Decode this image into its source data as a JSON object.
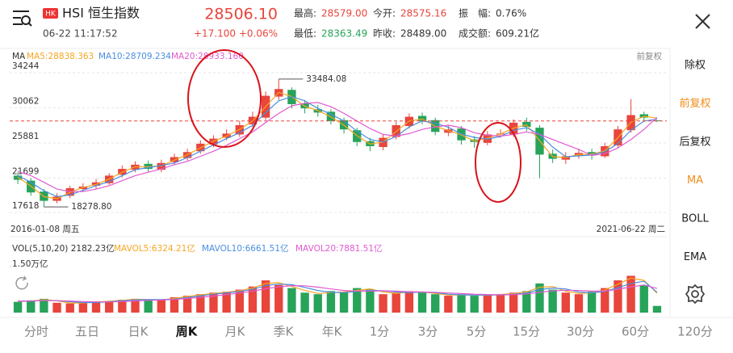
{
  "header": {
    "badge": "HK",
    "name": "HSI 恒生指数",
    "time": "06-22 11:17:52",
    "price": "28506.10",
    "change": "+17.100",
    "change_pct": "+0.06%",
    "stats": [
      {
        "label": "最高:",
        "value": "28579.00"
      },
      {
        "label": "今开:",
        "value": "28575.16"
      },
      {
        "label": "振　幅:",
        "value": "0.76%"
      },
      {
        "label": "最低:",
        "value": "28363.49"
      },
      {
        "label": "昨收:",
        "value": "28489.00"
      },
      {
        "label": "成交额:",
        "value": "609.21亿"
      }
    ]
  },
  "chart_data": {
    "type": "candlestick",
    "ma_label": "MA",
    "adjust_label": "前复权",
    "start_label": "2016-01-08 周五",
    "end_label": "2021-06-22 周二",
    "up_color": "#e8453c",
    "down_color": "#27a35a",
    "grid": true,
    "ylim": [
      17618,
      34244
    ],
    "yticks": [
      34244,
      30062,
      25881,
      21699,
      17618
    ],
    "max_mark": 33484.08,
    "min_mark": {
      "value": 18278.8,
      "label": "18278.80"
    },
    "open": [
      22000,
      21400,
      20100,
      19000,
      19600,
      20400,
      20800,
      21100,
      22100,
      22700,
      23400,
      22700,
      23600,
      24100,
      24900,
      25700,
      26500,
      26900,
      28100,
      28900,
      31400,
      32200,
      30600,
      29900,
      29600,
      28600,
      27400,
      26100,
      25400,
      26600,
      27900,
      29100,
      28600,
      27100,
      27600,
      26300,
      25900,
      27000,
      26900,
      28400,
      27700,
      24600,
      23900,
      24400,
      24800,
      24300,
      25600,
      27400,
      29300,
      28575.16
    ],
    "high": [
      22400,
      21700,
      20400,
      19900,
      20800,
      21100,
      21600,
      22300,
      23200,
      23700,
      23800,
      23900,
      24600,
      25200,
      26200,
      26800,
      27500,
      28500,
      29600,
      32000,
      33484.08,
      32500,
      31000,
      30400,
      29900,
      28900,
      27700,
      26500,
      26900,
      28400,
      29400,
      29500,
      28900,
      28000,
      27900,
      26700,
      27300,
      27500,
      28700,
      28900,
      28000,
      25100,
      24800,
      25200,
      25200,
      25900,
      27900,
      31100,
      29600,
      28579
    ],
    "low": [
      21000,
      19600,
      18278.8,
      18700,
      19300,
      20100,
      20400,
      20900,
      21800,
      22400,
      22400,
      22400,
      23300,
      23800,
      24600,
      25400,
      26200,
      26600,
      27800,
      28600,
      31000,
      30000,
      29400,
      29000,
      28100,
      27000,
      25500,
      24900,
      25000,
      26300,
      27600,
      28100,
      26800,
      26700,
      25700,
      25300,
      25600,
      26500,
      26600,
      27300,
      21700,
      23500,
      23400,
      24000,
      23900,
      24100,
      25300,
      27100,
      28400,
      28363.49
    ],
    "close": [
      21500,
      20000,
      19000,
      19500,
      20500,
      20700,
      21200,
      22000,
      22800,
      23300,
      22800,
      23500,
      24200,
      24800,
      25800,
      26400,
      27000,
      28000,
      29000,
      31500,
      32300,
      30500,
      30000,
      29500,
      28500,
      27500,
      26000,
      25500,
      26500,
      28000,
      29000,
      28500,
      27200,
      27500,
      26200,
      26000,
      26900,
      27000,
      28300,
      27800,
      24500,
      24000,
      24300,
      24700,
      24400,
      25500,
      27500,
      29200,
      28900,
      28506.1
    ],
    "series": [
      {
        "name": "MA5:28838.363",
        "color": "#f5a623",
        "values": [
          21800,
          20750,
          19500,
          19250,
          20000,
          20600,
          20950,
          21600,
          22400,
          23050,
          23050,
          23150,
          23850,
          24500,
          25300,
          26100,
          26700,
          27500,
          28500,
          30200,
          31900,
          31400,
          30250,
          29750,
          29000,
          28000,
          26750,
          25750,
          26000,
          27250,
          28500,
          28750,
          27850,
          27350,
          26850,
          26100,
          26450,
          26950,
          27650,
          28050,
          26150,
          24250,
          24150,
          24500,
          24550,
          24950,
          26500,
          28350,
          29050,
          28838.363
        ]
      },
      {
        "name": "MA10:28709.234",
        "color": "#4a8fe0",
        "values": [
          22000,
          21200,
          20200,
          19500,
          19700,
          20250,
          20800,
          21300,
          22000,
          22700,
          22950,
          23200,
          23500,
          24150,
          24900,
          25650,
          26400,
          27100,
          28000,
          29500,
          30900,
          31400,
          30900,
          30000,
          29300,
          28500,
          27300,
          26300,
          26000,
          26650,
          27800,
          28500,
          28250,
          27750,
          26950,
          26550,
          26350,
          26650,
          27400,
          27700,
          26900,
          25400,
          24250,
          24350,
          24450,
          24850,
          25800,
          27400,
          28500,
          28709.234
        ]
      },
      {
        "name": "MA20:28933.160",
        "color": "#e05ad0",
        "values": [
          22500,
          22000,
          21200,
          20400,
          20100,
          20100,
          20400,
          20800,
          21400,
          22000,
          22400,
          22800,
          23300,
          23700,
          24300,
          24900,
          25600,
          26400,
          27200,
          28300,
          29400,
          30300,
          30600,
          30700,
          30200,
          29400,
          28500,
          27600,
          26900,
          26700,
          27000,
          27500,
          27800,
          28000,
          27700,
          27100,
          26800,
          26700,
          26900,
          27200,
          26900,
          26300,
          25700,
          25100,
          24400,
          24600,
          25300,
          26300,
          27500,
          28933.16
        ]
      }
    ],
    "volume": {
      "label": "VOL(5,10,20) 2182.23亿",
      "ylim": [
        0,
        15000
      ],
      "yticks": [
        {
          "value": 15000,
          "label": "1.50万亿"
        }
      ],
      "values": [
        3500,
        4000,
        4500,
        3200,
        3000,
        3300,
        3600,
        3800,
        4200,
        4500,
        4000,
        4300,
        5000,
        5500,
        6000,
        6500,
        6800,
        7500,
        8500,
        10500,
        9000,
        8000,
        6500,
        6000,
        7000,
        6500,
        8000,
        7500,
        6000,
        6500,
        7000,
        6500,
        6000,
        5500,
        6000,
        5500,
        5800,
        6000,
        6500,
        7000,
        9500,
        7500,
        6500,
        6000,
        6800,
        8000,
        10500,
        12000,
        9000,
        2182.23
      ],
      "series": [
        {
          "name": "MAVOL5:6324.21亿",
          "color": "#f5a623",
          "values": [
            3600,
            3750,
            4250,
            3850,
            3100,
            3150,
            3450,
            3700,
            4000,
            4350,
            4250,
            4150,
            4650,
            5250,
            5750,
            6250,
            6650,
            7150,
            8000,
            9500,
            9750,
            8500,
            7250,
            6250,
            6500,
            6750,
            7250,
            7750,
            6750,
            6250,
            6750,
            6750,
            6250,
            5750,
            5750,
            5750,
            5650,
            5900,
            6250,
            6750,
            8250,
            8500,
            7000,
            6250,
            6400,
            7400,
            9250,
            11250,
            10500,
            6324.21
          ]
        },
        {
          "name": "MAVOL10:6661.51亿",
          "color": "#4a8fe0",
          "values": [
            3700,
            3700,
            4000,
            3900,
            3550,
            3300,
            3300,
            3550,
            3850,
            4150,
            4250,
            4250,
            4400,
            4900,
            5500,
            6000,
            6450,
            6900,
            7600,
            8800,
            9300,
            9100,
            8200,
            7200,
            6600,
            6500,
            6900,
            7300,
            7100,
            6700,
            6500,
            6700,
            6500,
            6000,
            5800,
            5700,
            5700,
            5750,
            6000,
            6400,
            7500,
            8000,
            7700,
            6700,
            6400,
            6900,
            8100,
            9500,
            10200,
            6661.51
          ]
        },
        {
          "name": "MAVOL20:7881.51亿",
          "color": "#e05ad0",
          "values": [
            3800,
            3800,
            3900,
            3900,
            3800,
            3600,
            3500,
            3500,
            3600,
            3800,
            4000,
            4100,
            4300,
            4600,
            5000,
            5400,
            5900,
            6400,
            7000,
            7800,
            8400,
            8800,
            8700,
            8300,
            7700,
            7200,
            7000,
            7000,
            7100,
            7000,
            6800,
            6700,
            6600,
            6400,
            6200,
            6000,
            5900,
            5800,
            5900,
            6100,
            6600,
            7100,
            7300,
            7200,
            7000,
            7000,
            7600,
            8400,
            9000,
            7881.51
          ]
        }
      ]
    }
  },
  "side_menu": [
    "除权",
    "前复权",
    "后复权",
    "MA",
    "BOLL",
    "EMA"
  ],
  "side_active": [
    1,
    3
  ],
  "tabs": [
    "分时",
    "五日",
    "日K",
    "周K",
    "月K",
    "季K",
    "年K",
    "1分",
    "3分",
    "5分",
    "15分",
    "30分",
    "60分",
    "120分"
  ],
  "tab_active": 3
}
